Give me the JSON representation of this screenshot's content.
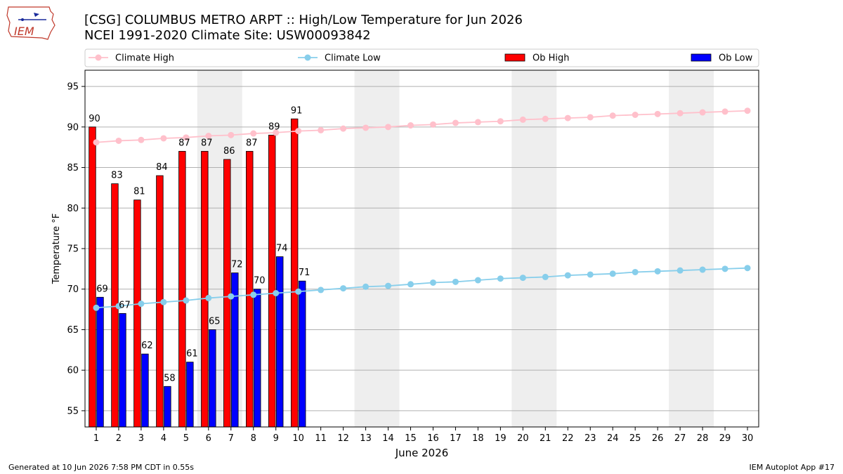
{
  "header": {
    "title_line1": "[CSG] COLUMBUS METRO ARPT :: High/Low Temperature for Jun 2026",
    "title_line2": "NCEI 1991-2020 Climate Site: USW00093842",
    "logo_text": "IEM"
  },
  "footer": {
    "generated": "Generated at 10 Jun 2026 7:58 PM CDT in 0.55s",
    "app": "IEM Autoplot App #17"
  },
  "colors": {
    "ob_high": "#ff0000",
    "ob_low": "#0000ff",
    "climate_high": "#ffc0cb",
    "climate_low": "#87ceeb",
    "weekend_shade": "#eeeeee",
    "grid": "#b0b0b0"
  },
  "chart_data": {
    "type": "bar",
    "xlabel": "June 2026",
    "ylabel": "Temperature °F",
    "ylim": [
      53,
      97
    ],
    "yticks": [
      55,
      60,
      65,
      70,
      75,
      80,
      85,
      90,
      95
    ],
    "grid": "horizontal",
    "legend_position": "top",
    "days": [
      1,
      2,
      3,
      4,
      5,
      6,
      7,
      8,
      9,
      10,
      11,
      12,
      13,
      14,
      15,
      16,
      17,
      18,
      19,
      20,
      21,
      22,
      23,
      24,
      25,
      26,
      27,
      28,
      29,
      30
    ],
    "weekend_days": [
      6,
      7,
      13,
      14,
      20,
      21,
      27,
      28
    ],
    "series": [
      {
        "name": "Climate High",
        "kind": "line",
        "values": [
          88.1,
          88.3,
          88.4,
          88.6,
          88.7,
          88.9,
          89.0,
          89.2,
          89.3,
          89.5,
          89.6,
          89.8,
          89.9,
          90.0,
          90.2,
          90.3,
          90.5,
          90.6,
          90.7,
          90.9,
          91.0,
          91.1,
          91.2,
          91.4,
          91.5,
          91.6,
          91.7,
          91.8,
          91.9,
          92.0
        ]
      },
      {
        "name": "Climate Low",
        "kind": "line",
        "values": [
          67.7,
          67.9,
          68.2,
          68.4,
          68.6,
          68.9,
          69.1,
          69.3,
          69.5,
          69.7,
          69.9,
          70.1,
          70.3,
          70.4,
          70.6,
          70.8,
          70.9,
          71.1,
          71.3,
          71.4,
          71.5,
          71.7,
          71.8,
          71.9,
          72.1,
          72.2,
          72.3,
          72.4,
          72.5,
          72.6
        ]
      },
      {
        "name": "Ob High",
        "kind": "bar",
        "values": [
          90,
          83,
          81,
          84,
          87,
          87,
          86,
          87,
          89,
          91
        ]
      },
      {
        "name": "Ob Low",
        "kind": "bar",
        "values": [
          69,
          67,
          62,
          58,
          61,
          65,
          72,
          70,
          74,
          71
        ]
      }
    ]
  }
}
